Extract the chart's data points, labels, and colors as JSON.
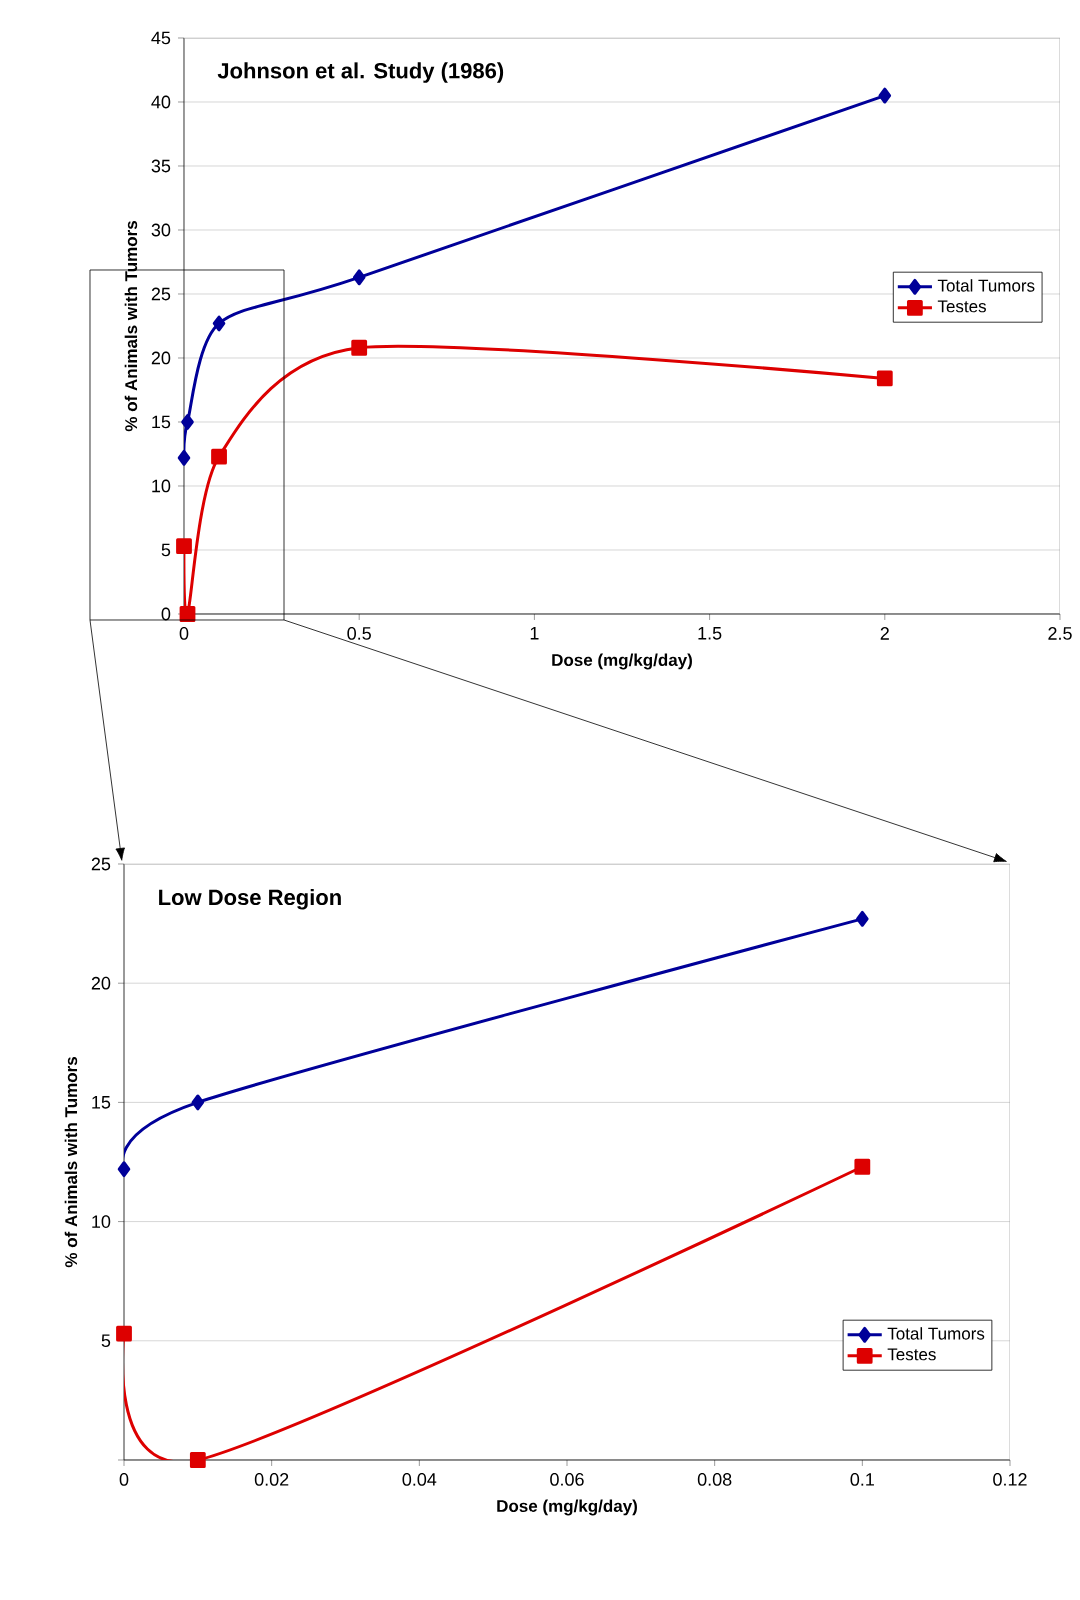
{
  "chart_data": [
    {
      "type": "line",
      "title": "Johnson et al. Study (1986)",
      "xlabel": "Dose (mg/kg/day)",
      "ylabel": "% of Animals with Tumors",
      "series": [
        {
          "name": "Total Tumors",
          "color": "#000099",
          "marker": "diamond",
          "x": [
            0,
            0.01,
            0.1,
            0.5,
            2
          ],
          "values": [
            12.2,
            15,
            22.7,
            26.3,
            40.5
          ]
        },
        {
          "name": "Testes",
          "color": "#dd0000",
          "marker": "square",
          "x": [
            0,
            0.01,
            0.1,
            0.5,
            2
          ],
          "values": [
            5.3,
            0,
            12.3,
            20.8,
            18.4
          ]
        }
      ],
      "xlim": [
        0,
        2.5
      ],
      "xticks": [
        0,
        0.5,
        1,
        1.5,
        2,
        2.5
      ],
      "ylim": [
        0,
        45
      ],
      "yticks": [
        0,
        5,
        10,
        15,
        20,
        25,
        30,
        35,
        40,
        45
      ],
      "grid": "y",
      "legend": "right",
      "line_style": "solid"
    },
    {
      "type": "line",
      "title": "Low Dose Region",
      "xlabel": "Dose (mg/kg/day)",
      "ylabel": "% of Animals with Tumors",
      "series": [
        {
          "name": "Total Tumors",
          "color": "#000099",
          "marker": "diamond",
          "x": [
            0,
            0.01,
            0.1
          ],
          "values": [
            12.2,
            15,
            22.7
          ]
        },
        {
          "name": "Testes",
          "color": "#dd0000",
          "marker": "square",
          "x": [
            0,
            0.01,
            0.1
          ],
          "values": [
            5.3,
            0,
            12.3
          ]
        }
      ],
      "xlim": [
        0,
        0.12
      ],
      "xticks": [
        0,
        0.02,
        0.04,
        0.06,
        0.08,
        0.1,
        0.12
      ],
      "ylim": [
        0,
        25
      ],
      "yticks": [
        {
          "value": 0,
          "label": null
        },
        5,
        10,
        15,
        20,
        25
      ],
      "grid": "y",
      "legend": "bottom right",
      "line_style": "solid"
    }
  ]
}
